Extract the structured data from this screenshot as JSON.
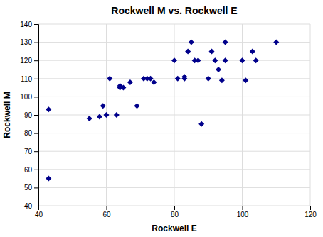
{
  "chart_data": {
    "type": "scatter",
    "title": "Rockwell M vs. Rockwell E",
    "xlabel": "Rockwell E",
    "ylabel": "Rockwell M",
    "x": [
      43,
      43,
      55,
      58,
      59,
      60,
      61,
      63,
      64,
      64,
      65,
      67,
      69,
      71,
      72,
      73,
      74,
      80,
      81,
      83,
      83,
      84,
      85,
      86,
      87,
      88,
      90,
      91,
      92,
      93,
      94,
      95,
      95,
      100,
      101,
      103,
      104,
      110
    ],
    "values": [
      93,
      55,
      88,
      89,
      95,
      90,
      110,
      90,
      105,
      106,
      105,
      108,
      95,
      110,
      110,
      110,
      108,
      120,
      110,
      110,
      111,
      125,
      130,
      120,
      120,
      85,
      110,
      125,
      120,
      115,
      109,
      120,
      130,
      120,
      109,
      125,
      120,
      130
    ],
    "color": "#00008B",
    "marker": "diamond",
    "xlim": [
      40,
      120
    ],
    "ylim": [
      40,
      140
    ],
    "xticks": [
      40,
      60,
      80,
      100,
      120
    ],
    "yticks": [
      40,
      50,
      60,
      70,
      80,
      90,
      100,
      110,
      120,
      130,
      140
    ],
    "grid": true
  }
}
